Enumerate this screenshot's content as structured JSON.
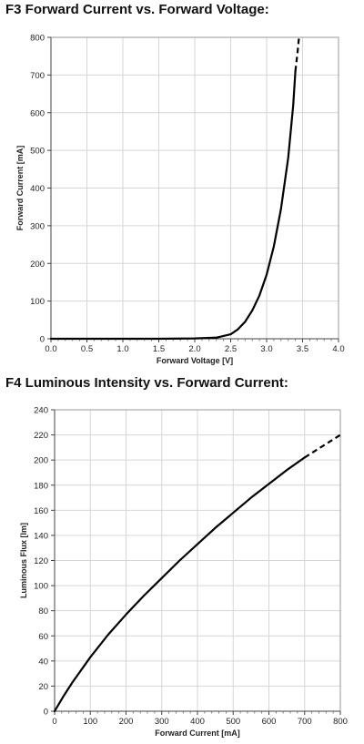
{
  "chart_data": [
    {
      "type": "line",
      "title": "F3 Forward Current vs. Forward Voltage:",
      "xlabel": "Forward Voltage [V]",
      "ylabel": "Forward Current [mA]",
      "xlim": [
        0,
        4
      ],
      "ylim": [
        0,
        800
      ],
      "xticks": [
        "0.0",
        "0.5",
        "1.0",
        "1.5",
        "2.0",
        "2.5",
        "3.0",
        "3.5",
        "4.0"
      ],
      "yticks": [
        "0",
        "100",
        "200",
        "300",
        "400",
        "500",
        "600",
        "700",
        "800"
      ],
      "grid": true,
      "line_color": "#000000",
      "series": [
        {
          "solid": [
            [
              0,
              0
            ],
            [
              1.5,
              0
            ],
            [
              2.0,
              1
            ],
            [
              2.3,
              3
            ],
            [
              2.5,
              12
            ],
            [
              2.6,
              25
            ],
            [
              2.7,
              45
            ],
            [
              2.8,
              75
            ],
            [
              2.9,
              115
            ],
            [
              3.0,
              170
            ],
            [
              3.1,
              245
            ],
            [
              3.2,
              345
            ],
            [
              3.3,
              480
            ],
            [
              3.37,
              620
            ],
            [
              3.4,
              710
            ]
          ],
          "dashed": [
            [
              3.4,
              710
            ],
            [
              3.43,
              760
            ],
            [
              3.45,
              800
            ]
          ]
        }
      ]
    },
    {
      "type": "line",
      "title": "F4 Luminous Intensity vs. Forward Current:",
      "xlabel": "Forward Current [mA]",
      "ylabel": "Luminous Flux [lm]",
      "xlim": [
        0,
        800
      ],
      "ylim": [
        0,
        240
      ],
      "xticks": [
        "0",
        "100",
        "200",
        "300",
        "400",
        "500",
        "600",
        "700",
        "800"
      ],
      "yticks": [
        "0",
        "20",
        "40",
        "60",
        "80",
        "100",
        "120",
        "140",
        "160",
        "180",
        "200",
        "220",
        "240"
      ],
      "grid": true,
      "line_color": "#000000",
      "series": [
        {
          "solid": [
            [
              0,
              0
            ],
            [
              25,
              12
            ],
            [
              50,
              23
            ],
            [
              100,
              43
            ],
            [
              150,
              61
            ],
            [
              200,
              77
            ],
            [
              250,
              92
            ],
            [
              300,
              106
            ],
            [
              350,
              120
            ],
            [
              400,
              133
            ],
            [
              450,
              146
            ],
            [
              500,
              158
            ],
            [
              550,
              170
            ],
            [
              600,
              181
            ],
            [
              650,
              192
            ],
            [
              700,
              202
            ]
          ],
          "dashed": [
            [
              700,
              202
            ],
            [
              750,
              211
            ],
            [
              800,
              220
            ]
          ]
        }
      ]
    }
  ]
}
